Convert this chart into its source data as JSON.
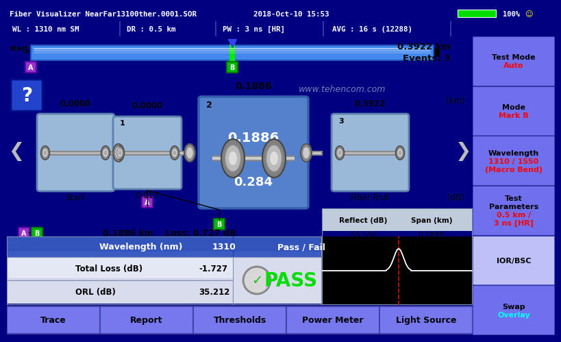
{
  "title_bar": "Fiber Visualizer NearFar13100ther.0001.SOR",
  "datetime": "2018-Oct-10 15:53",
  "battery_pct": "100%",
  "status_wl": "WL : 1310 nm SM",
  "status_dr": "DR : 0.5 km",
  "status_pw": "PW : 3 ns [HR]",
  "status_avg": "AVG : 16 s (12288)",
  "distance_km": "0.3922 km",
  "events_label": "Events: 3",
  "watermark": "www.tehencom.com",
  "ab_dist": "0.1886 km",
  "ab_loss": "Loss: 0.727 dB",
  "reflect_db": "-55.556",
  "span_km": "0.1886",
  "wl_nm": "1310",
  "total_loss": "-1.727",
  "orl_db": "35.212",
  "pass_text": "PASS",
  "bottom_buttons": [
    "Trace",
    "Report",
    "Thresholds",
    "Power Meter",
    "Light Source"
  ],
  "right_buttons": [
    "Test Mode\nAuto",
    "Mode\nMark B",
    "Wavelength\n1310 / 1550\n(Macro Bend)",
    "Test\nParameters\n0.5 km /\n3 ns [HR]",
    "IOR/BSC",
    "Swap\nOverlay"
  ],
  "right_btn_red_lines": [
    "Auto",
    "Mark B",
    "1310 / 1550|(Macro Bend)",
    "0.5 km /|3 ns [HR]",
    "",
    ""
  ],
  "right_btn_cyan": [
    false,
    false,
    false,
    false,
    false,
    true
  ],
  "bg_color": "#000080",
  "header_color": "#1a1a8c",
  "main_bg": "#b8c8e8",
  "bottom_btn_color": "#7878ee"
}
